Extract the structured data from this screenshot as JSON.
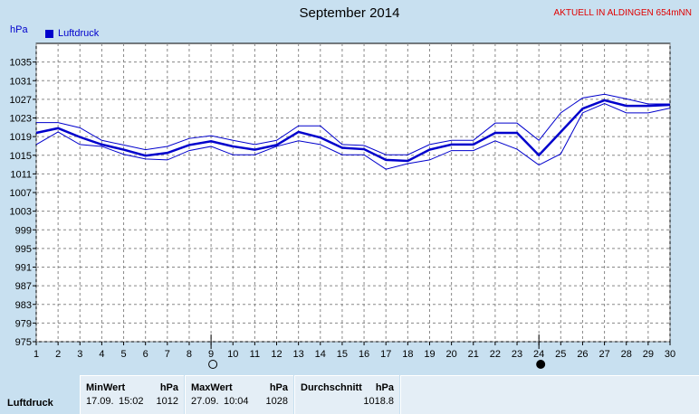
{
  "header": {
    "title": "September 2014",
    "station": "AKTUELL IN ALDINGEN 654mNN",
    "unit": "hPa",
    "legend": "Luftdruck"
  },
  "chart_data": {
    "type": "line",
    "title": "September 2014",
    "ylabel": "hPa",
    "ylim": [
      975,
      1039
    ],
    "yticks": [
      975,
      979,
      983,
      987,
      991,
      995,
      999,
      1003,
      1007,
      1011,
      1015,
      1019,
      1023,
      1027,
      1031,
      1035
    ],
    "x": [
      1,
      2,
      3,
      4,
      5,
      6,
      7,
      8,
      9,
      10,
      11,
      12,
      13,
      14,
      15,
      16,
      17,
      18,
      19,
      20,
      21,
      22,
      23,
      24,
      25,
      26,
      27,
      28,
      29,
      30
    ],
    "series": [
      {
        "name": "Luftdruck",
        "role": "mean",
        "values": [
          1019.8,
          1020.8,
          1018.9,
          1017.3,
          1016.2,
          1014.9,
          1015.5,
          1017.2,
          1018.0,
          1016.9,
          1016.2,
          1017.2,
          1020.0,
          1018.8,
          1016.6,
          1016.3,
          1014.0,
          1013.8,
          1016.2,
          1017.3,
          1017.3,
          1019.8,
          1019.8,
          1015.0,
          1020.0,
          1025.0,
          1026.8,
          1025.6,
          1025.6,
          1025.8
        ]
      },
      {
        "role": "max",
        "values": [
          1022.0,
          1022.0,
          1020.9,
          1018.2,
          1017.2,
          1016.2,
          1016.9,
          1018.6,
          1019.2,
          1018.2,
          1017.3,
          1018.2,
          1021.3,
          1021.3,
          1017.3,
          1017.1,
          1015.1,
          1015.1,
          1017.3,
          1018.2,
          1018.2,
          1021.9,
          1021.9,
          1018.2,
          1024.1,
          1027.3,
          1028.1,
          1027.1,
          1026.0,
          1026.0
        ]
      },
      {
        "role": "min",
        "values": [
          1017.3,
          1020.0,
          1017.3,
          1016.9,
          1015.2,
          1014.2,
          1014.0,
          1016.0,
          1016.9,
          1015.1,
          1015.1,
          1016.9,
          1018.1,
          1017.3,
          1015.1,
          1015.1,
          1012.0,
          1013.2,
          1014.0,
          1016.0,
          1016.0,
          1018.1,
          1016.3,
          1012.9,
          1015.3,
          1024.1,
          1026.1,
          1024.1,
          1024.1,
          1025.1
        ]
      }
    ],
    "grid": true,
    "markers": [
      {
        "day": 9,
        "symbol": "○"
      },
      {
        "day": 24,
        "symbol": "●"
      }
    ]
  },
  "stats": {
    "minwert_label": "MinWert",
    "minwert_unit": "hPa",
    "minwert_date": "17.09.",
    "minwert_time": "15:02",
    "minwert_value": "1012",
    "maxwert_label": "MaxWert",
    "maxwert_unit": "hPa",
    "maxwert_date": "27.09.",
    "maxwert_time": "10:04",
    "maxwert_value": "1028",
    "avg_label": "Durchschnitt",
    "avg_unit": "hPa",
    "avg_value": "1018.8",
    "row_label": "Luftdruck"
  }
}
